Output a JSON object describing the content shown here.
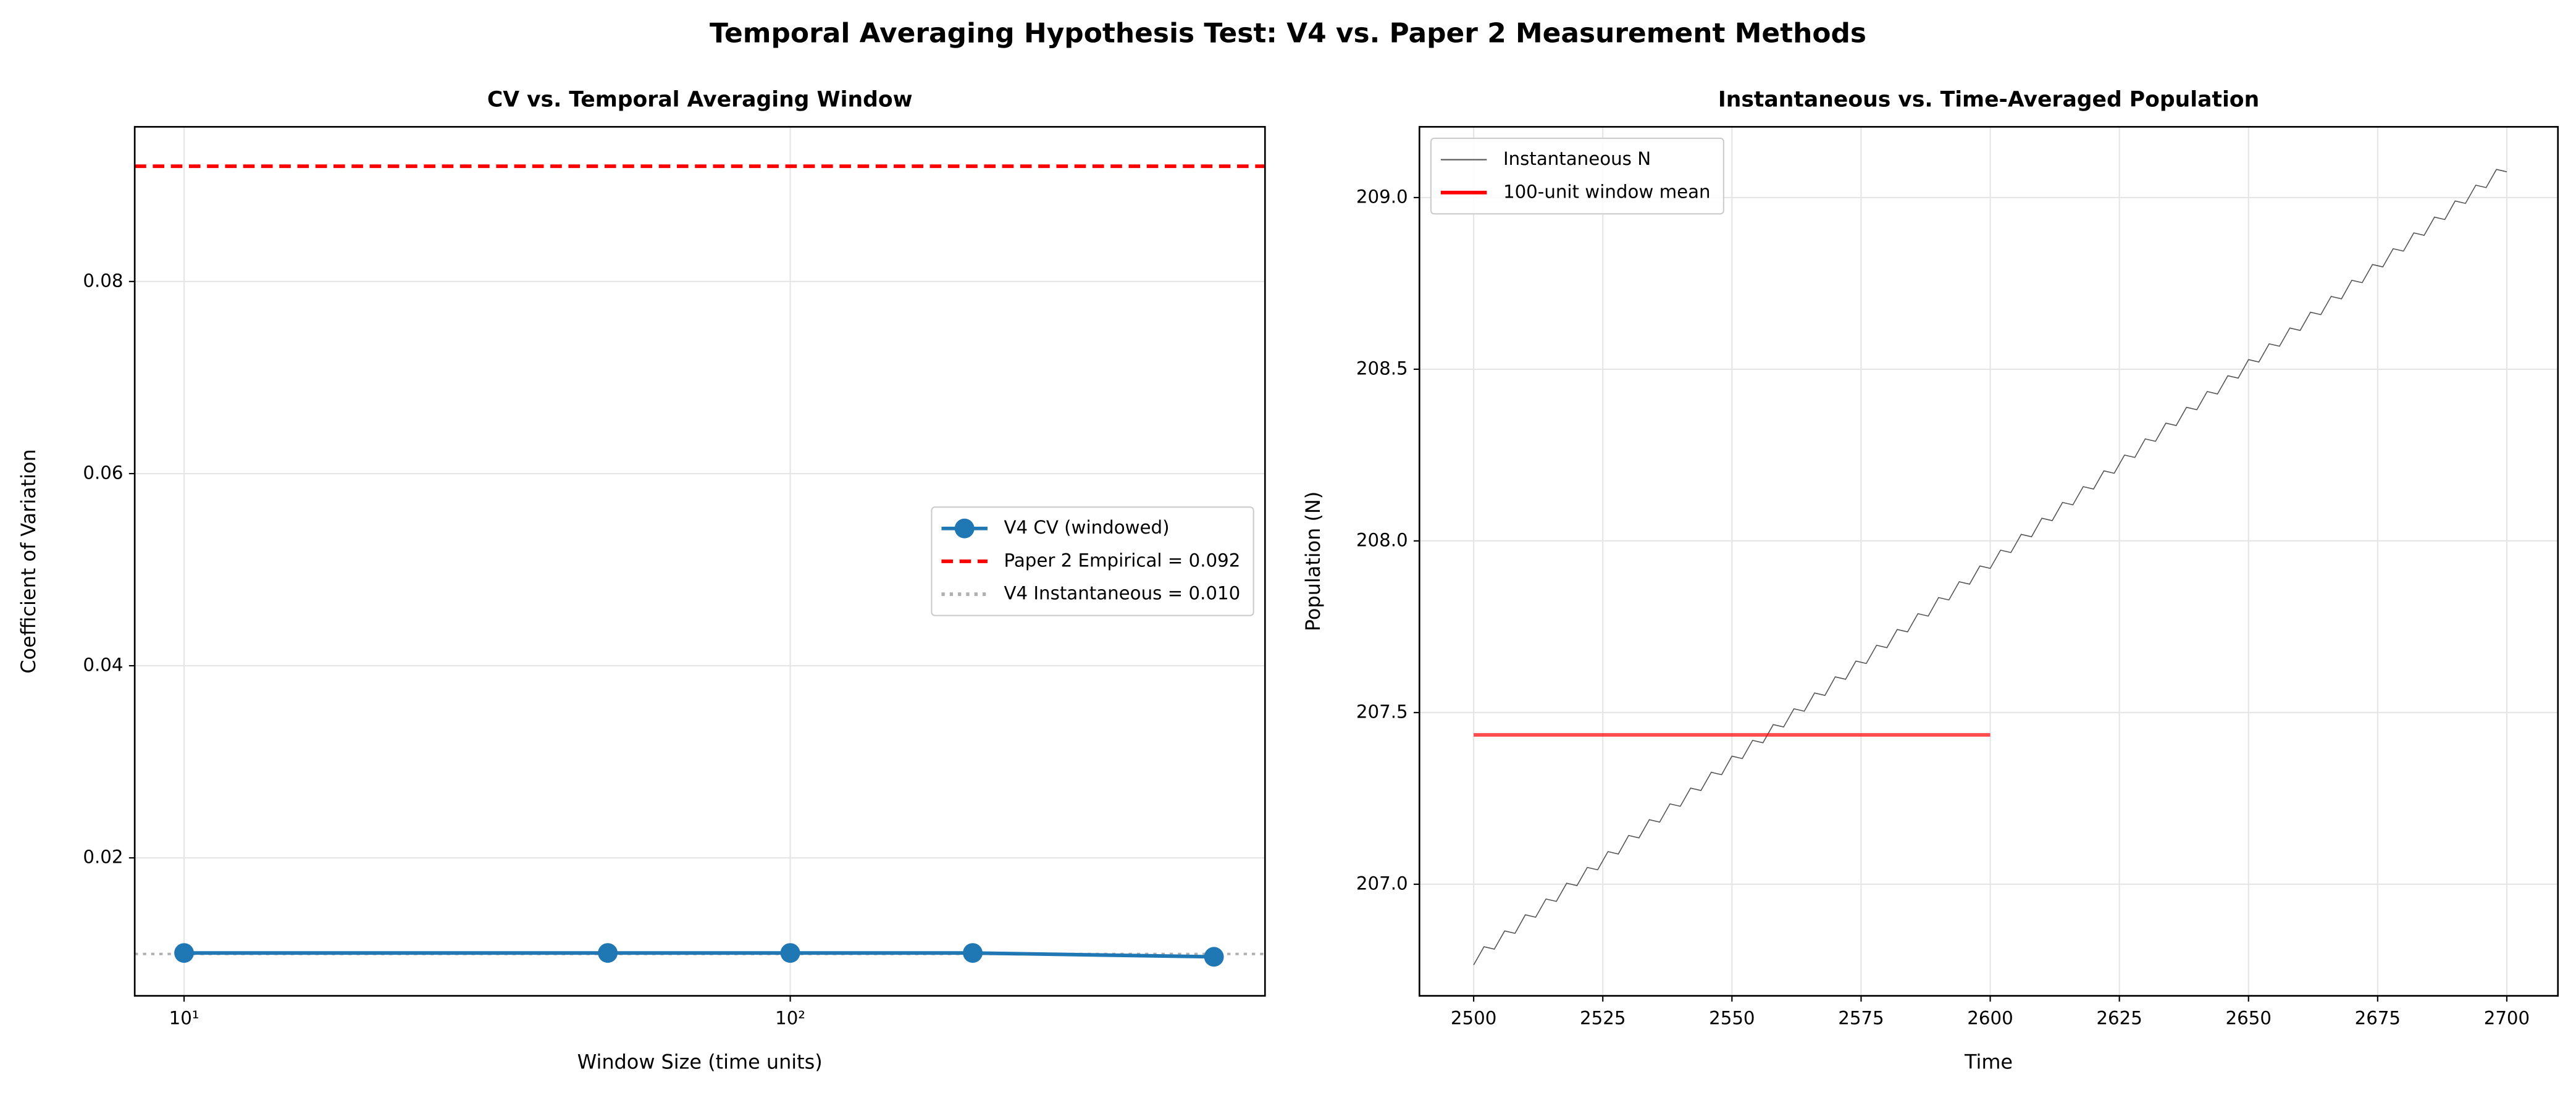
{
  "title": "Temporal Averaging Hypothesis Test: V4 vs. Paper 2 Measurement Methods",
  "chart_data": [
    {
      "type": "line",
      "title": "CV vs. Temporal Averaging Window",
      "x_label": "Window Size (time units)",
      "y_label": "Coefficient of Variation",
      "x": [
        10,
        50,
        100,
        200,
        500
      ],
      "series": [
        {
          "name": "V4 CV (windowed)",
          "color": "#1f77b4",
          "marker": "o",
          "values": [
            0.0101,
            0.0101,
            0.0101,
            0.0101,
            0.0097
          ]
        }
      ],
      "hlines": [
        {
          "name": "Paper 2 Empirical = 0.092",
          "value": 0.092,
          "color": "#ff0000",
          "style": "dashed"
        },
        {
          "name": "V4 Instantaneous = 0.010",
          "value": 0.01,
          "color": "#b0b0b0",
          "style": "dotted"
        }
      ],
      "xscale": "log",
      "xlim": [
        8.29,
        607
      ],
      "ylim": [
        0.00564,
        0.0961
      ],
      "xticks": [
        {
          "value": 10,
          "label": "10¹"
        },
        {
          "value": 100,
          "label": "10²"
        }
      ],
      "yticks": [
        0.02,
        0.04,
        0.06,
        0.08
      ],
      "grid": true,
      "legend": "center right"
    },
    {
      "type": "line",
      "title": "Instantaneous vs. Time-Averaged Population",
      "x_label": "Time",
      "y_label": "Population (N)",
      "series": [
        {
          "name": "Instantaneous N",
          "color": "#555555",
          "x": [
            2500,
            2502,
            2504,
            2506,
            2508,
            2510,
            2512,
            2514,
            2516,
            2518,
            2520,
            2522,
            2524,
            2526,
            2528,
            2530,
            2532,
            2534,
            2536,
            2538,
            2540,
            2542,
            2544,
            2546,
            2548,
            2550,
            2552,
            2554,
            2556,
            2558,
            2560,
            2562,
            2564,
            2566,
            2568,
            2570,
            2572,
            2574,
            2576,
            2578,
            2580,
            2582,
            2584,
            2586,
            2588,
            2590,
            2592,
            2594,
            2596,
            2598,
            2600,
            2602,
            2604,
            2606,
            2608,
            2610,
            2612,
            2614,
            2616,
            2618,
            2620,
            2622,
            2624,
            2626,
            2628,
            2630,
            2632,
            2634,
            2636,
            2638,
            2640,
            2642,
            2644,
            2646,
            2648,
            2650,
            2652,
            2654,
            2656,
            2658,
            2660,
            2662,
            2664,
            2666,
            2668,
            2670,
            2672,
            2674,
            2676,
            2678,
            2680,
            2682,
            2684,
            2686,
            2688,
            2690,
            2692,
            2694,
            2696,
            2698,
            2700
          ],
          "values": [
            206.765,
            206.818,
            206.811,
            206.864,
            206.857,
            206.911,
            206.904,
            206.957,
            206.95,
            207.003,
            206.996,
            207.049,
            207.042,
            207.095,
            207.088,
            207.142,
            207.135,
            207.188,
            207.181,
            207.234,
            207.227,
            207.28,
            207.273,
            207.326,
            207.319,
            207.373,
            207.366,
            207.419,
            207.412,
            207.465,
            207.458,
            207.511,
            207.504,
            207.557,
            207.55,
            207.604,
            207.597,
            207.65,
            207.643,
            207.696,
            207.689,
            207.742,
            207.735,
            207.788,
            207.781,
            207.835,
            207.828,
            207.881,
            207.874,
            207.927,
            207.92,
            207.973,
            207.966,
            208.019,
            208.012,
            208.066,
            208.059,
            208.112,
            208.105,
            208.158,
            208.151,
            208.204,
            208.197,
            208.25,
            208.243,
            208.297,
            208.29,
            208.343,
            208.336,
            208.389,
            208.382,
            208.435,
            208.428,
            208.481,
            208.474,
            208.528,
            208.521,
            208.574,
            208.567,
            208.62,
            208.613,
            208.666,
            208.659,
            208.712,
            208.705,
            208.759,
            208.752,
            208.805,
            208.798,
            208.851,
            208.844,
            208.897,
            208.89,
            208.943,
            208.936,
            208.99,
            208.983,
            209.036,
            209.029,
            209.082,
            209.075
          ]
        },
        {
          "name": "100-unit window mean",
          "color": "#ff0000",
          "x": [
            2500,
            2600
          ],
          "values": [
            207.435,
            207.435
          ]
        }
      ],
      "xlim": [
        2489.5,
        2709.9
      ],
      "ylim": [
        206.675,
        209.206
      ],
      "xticks": [
        2500,
        2525,
        2550,
        2575,
        2600,
        2625,
        2650,
        2675,
        2700
      ],
      "yticks": [
        {
          "value": 207,
          "label": "207.0"
        },
        207.5,
        {
          "value": 208,
          "label": "208.0"
        },
        208.5,
        {
          "value": 209,
          "label": "209.0"
        }
      ],
      "grid": true,
      "legend": "upper left"
    }
  ]
}
